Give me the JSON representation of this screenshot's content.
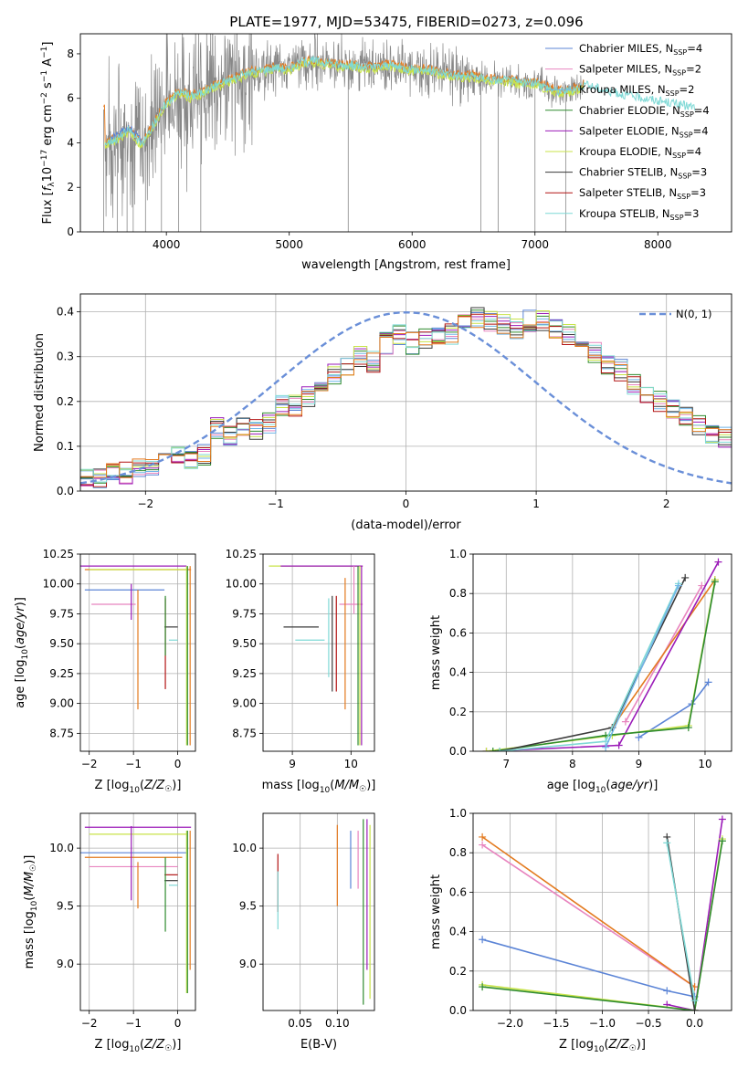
{
  "figure": {
    "title": "PLATE=1977, MJD=53475, FIBERID=0273, z=0.096"
  },
  "colors": {
    "chabrier_miles": "#5b84d6",
    "salpeter_miles": "#e885bf",
    "kroupa_miles": "#6fb5e8",
    "chabrier_elodie": "#2e8b2e",
    "salpeter_elodie": "#9b1bb8",
    "kroupa_elodie": "#c8e34a",
    "chabrier_stelib": "#3a3a3a",
    "salpeter_stelib": "#b21414",
    "kroupa_stelib": "#7fd9d6",
    "orange": "#e37a1f",
    "data_grey": "#888888",
    "normal_curve": "#6a8fd8"
  },
  "legend": {
    "items": [
      {
        "name": "Chabrier MILES",
        "nssp": "4",
        "color": "#5b84d6"
      },
      {
        "name": "Salpeter MILES",
        "nssp": "2",
        "color": "#e885bf"
      },
      {
        "name": "Kroupa MILES",
        "nssp": "2",
        "color": "#6fb5e8"
      },
      {
        "name": "Chabrier ELODIE",
        "nssp": "4",
        "color": "#2e8b2e"
      },
      {
        "name": "Salpeter ELODIE",
        "nssp": "4",
        "color": "#9b1bb8"
      },
      {
        "name": "Kroupa ELODIE",
        "nssp": "4",
        "color": "#c8e34a"
      },
      {
        "name": "Chabrier STELIB",
        "nssp": "3",
        "color": "#3a3a3a"
      },
      {
        "name": "Salpeter STELIB",
        "nssp": "3",
        "color": "#b21414"
      },
      {
        "name": "Kroupa STELIB",
        "nssp": "3",
        "color": "#7fd9d6"
      }
    ],
    "normal_label": "N(0, 1)"
  },
  "chart_data": [
    {
      "id": "spectrum",
      "type": "line",
      "xlabel": "wavelength [Angstrom, rest frame]",
      "ylabel": "Flux [f_λ 10^-17 erg cm^-2 s^-1 A^-1]",
      "xlim": [
        3300,
        8600
      ],
      "ylim": [
        0,
        8.9
      ],
      "xticks": [
        4000,
        5000,
        6000,
        7000,
        8000
      ],
      "yticks": [
        0,
        2,
        4,
        6,
        8
      ],
      "grid": false,
      "legend_position": "top-right",
      "model_continuum": {
        "x": [
          3500,
          3600,
          3700,
          3800,
          3900,
          4000,
          4100,
          4200,
          4300,
          4400,
          4500,
          4600,
          4700,
          4800,
          4900,
          5000,
          5100,
          5200,
          5300,
          5400,
          5500,
          5600,
          5700,
          5800,
          5900,
          6000,
          6100,
          6200,
          6300,
          6400,
          6500,
          6600,
          6700,
          6800,
          6900,
          7000,
          7100,
          7200,
          7300,
          7400,
          7500,
          7600,
          7700,
          7800,
          7900,
          8000,
          8100,
          8200,
          8300,
          8400
        ],
        "y": [
          4.0,
          4.2,
          4.6,
          3.9,
          4.9,
          5.8,
          6.3,
          6.1,
          6.3,
          6.6,
          6.8,
          7.0,
          7.2,
          7.3,
          7.4,
          7.3,
          7.6,
          7.7,
          7.6,
          7.5,
          7.5,
          7.4,
          7.4,
          7.5,
          7.4,
          7.3,
          7.3,
          7.2,
          7.1,
          7.0,
          7.0,
          6.9,
          6.8,
          6.8,
          6.7,
          6.7,
          6.5,
          6.3,
          6.4,
          6.6,
          6.5,
          6.3,
          6.2,
          6.1,
          6.0,
          5.9,
          5.8,
          5.7,
          5.6,
          5.5
        ]
      }
    },
    {
      "id": "residuals",
      "type": "bar",
      "xlabel": "(data-model)/error",
      "ylabel": "Normed distribution",
      "xlim": [
        -2.5,
        2.5
      ],
      "ylim": [
        0,
        0.44
      ],
      "xticks": [
        -2,
        -1,
        0,
        1,
        2
      ],
      "yticks": [
        0.0,
        0.1,
        0.2,
        0.3,
        0.4
      ],
      "grid": true,
      "legend_position": "top-right",
      "bin_width": 0.1,
      "hist": [
        0.03,
        0.03,
        0.04,
        0.04,
        0.05,
        0.06,
        0.07,
        0.08,
        0.07,
        0.08,
        0.14,
        0.12,
        0.14,
        0.14,
        0.15,
        0.19,
        0.19,
        0.21,
        0.23,
        0.26,
        0.28,
        0.3,
        0.29,
        0.33,
        0.35,
        0.33,
        0.34,
        0.34,
        0.35,
        0.37,
        0.39,
        0.38,
        0.37,
        0.36,
        0.38,
        0.38,
        0.36,
        0.35,
        0.34,
        0.31,
        0.28,
        0.27,
        0.24,
        0.22,
        0.2,
        0.18,
        0.17,
        0.15,
        0.13,
        0.12,
        0.1,
        0.09,
        0.08,
        0.07,
        0.06,
        0.05,
        0.04,
        0.03,
        0.03,
        0.02
      ]
    },
    {
      "id": "age_vs_Z",
      "type": "scatter",
      "xlabel": "Z [log10(Z/Z☉)]",
      "ylabel": "age [log10(age/yr)]",
      "xlim": [
        -2.2,
        0.4
      ],
      "ylim": [
        8.6,
        10.25
      ],
      "xticks": [
        -2,
        -1,
        0
      ],
      "yticks": [
        8.75,
        9.0,
        9.25,
        9.5,
        9.75,
        10.0,
        10.25
      ],
      "grid": true
    },
    {
      "id": "age_vs_mass",
      "type": "scatter",
      "xlabel": "mass [log10(M/M☉)]",
      "xlim": [
        8.5,
        10.4
      ],
      "ylim": [
        8.6,
        10.25
      ],
      "xticks": [
        9,
        10
      ],
      "yticks": [
        8.75,
        9.0,
        9.25,
        9.5,
        9.75,
        10.0,
        10.25
      ],
      "grid": true
    },
    {
      "id": "mass_weight_vs_age",
      "type": "line",
      "xlabel": "age [log10(age/yr)]",
      "ylabel": "mass weight",
      "xlim": [
        6.5,
        10.4
      ],
      "ylim": [
        0,
        1.0
      ],
      "xticks": [
        7,
        8,
        9,
        10
      ],
      "yticks": [
        0.0,
        0.2,
        0.4,
        0.6,
        0.8,
        1.0
      ],
      "grid": true
    },
    {
      "id": "mass_vs_Z",
      "type": "scatter",
      "xlabel": "Z [log10(Z/Z☉)]",
      "ylabel": "mass [log10(M/M☉)]",
      "xlim": [
        -2.2,
        0.4
      ],
      "ylim": [
        8.6,
        10.3
      ],
      "xticks": [
        -2,
        -1,
        0
      ],
      "yticks": [
        9.0,
        9.5,
        10.0
      ],
      "grid": true
    },
    {
      "id": "mass_vs_ebv",
      "type": "scatter",
      "xlabel": "E(B-V)",
      "xlim": [
        0.0,
        0.15
      ],
      "ylim": [
        8.6,
        10.3
      ],
      "xticks": [
        0.05,
        0.1
      ],
      "xticklabels": [
        "0.05",
        "0.10"
      ],
      "yticks": [
        9.0,
        9.5,
        10.0
      ],
      "grid": true
    },
    {
      "id": "mass_weight_vs_Z",
      "type": "line",
      "xlabel": "Z [log10(Z/Z☉)]",
      "ylabel": "mass weight",
      "xlim": [
        -2.4,
        0.4
      ],
      "ylim": [
        0,
        1.0
      ],
      "xticks": [
        -2.0,
        -1.5,
        -1.0,
        -0.5,
        0.0
      ],
      "xticklabels": [
        "−2.0",
        "−1.5",
        "−1.0",
        "−0.5",
        "0.0"
      ],
      "yticks": [
        0.0,
        0.2,
        0.4,
        0.6,
        0.8,
        1.0
      ],
      "grid": true
    }
  ],
  "series_points": {
    "age_vs_Z": [
      {
        "c": "#5b84d6",
        "x": -1.2,
        "y": 9.95,
        "ex": 0.9,
        "ey": 0
      },
      {
        "c": "#e885bf",
        "x": -1.45,
        "y": 9.83,
        "ex": 0.5,
        "ey": 0
      },
      {
        "c": "#9b1bb8",
        "x": -1.0,
        "y": 10.15,
        "ex": 1.2,
        "ey": 0
      },
      {
        "c": "#e37a1f",
        "x": -0.9,
        "y": 10.12,
        "ex": 1.2,
        "ey": 0
      },
      {
        "c": "#c8e34a",
        "x": -0.9,
        "y": 10.12,
        "ex": 1.1,
        "ey": 0
      },
      {
        "c": "#3a3a3a",
        "x": -0.15,
        "y": 9.64,
        "ex": 0.15,
        "ey": 0
      },
      {
        "c": "#7fd9d6",
        "x": -0.1,
        "y": 9.53,
        "ex": 0.1,
        "ey": 0
      },
      {
        "c": "#9b1bb8",
        "x": -1.05,
        "y": 9.85,
        "ex": 0,
        "ey": 0.15
      },
      {
        "c": "#e37a1f",
        "x": -0.9,
        "y": 9.45,
        "ex": 0,
        "ey": 0.5
      },
      {
        "c": "#b21414",
        "x": -0.28,
        "y": 9.5,
        "ex": 0,
        "ey": 0.38
      },
      {
        "c": "#2e8b2e",
        "x": -0.28,
        "y": 9.65,
        "ex": 0,
        "ey": 0.25
      },
      {
        "c": "#c8e34a",
        "x": 0.2,
        "y": 9.4,
        "ex": 0,
        "ey": 0.75
      },
      {
        "c": "#e37a1f",
        "x": 0.28,
        "y": 9.4,
        "ex": 0,
        "ey": 0.75
      },
      {
        "c": "#2e8b2e",
        "x": 0.22,
        "y": 9.4,
        "ex": 0,
        "ey": 0.75
      }
    ],
    "age_vs_mass": [
      {
        "c": "#c8e34a",
        "x": 9.4,
        "y": 10.15,
        "ex": 0.8,
        "ey": 0
      },
      {
        "c": "#9b1bb8",
        "x": 9.5,
        "y": 10.15,
        "ex": 0.7,
        "ey": 0
      },
      {
        "c": "#3a3a3a",
        "x": 9.15,
        "y": 9.64,
        "ex": 0.3,
        "ey": 0
      },
      {
        "c": "#7fd9d6",
        "x": 9.3,
        "y": 9.53,
        "ex": 0.25,
        "ey": 0
      },
      {
        "c": "#e885bf",
        "x": 10.0,
        "y": 9.83,
        "ex": 0.2,
        "ey": 0
      },
      {
        "c": "#e37a1f",
        "x": 9.9,
        "y": 9.5,
        "ex": 0,
        "ey": 0.55
      },
      {
        "c": "#b21414",
        "x": 9.75,
        "y": 9.5,
        "ex": 0,
        "ey": 0.4
      },
      {
        "c": "#3a3a3a",
        "x": 9.68,
        "y": 9.5,
        "ex": 0,
        "ey": 0.4
      },
      {
        "c": "#7fd9d6",
        "x": 9.62,
        "y": 9.55,
        "ex": 0,
        "ey": 0.33
      },
      {
        "c": "#c8e34a",
        "x": 10.15,
        "y": 9.4,
        "ex": 0,
        "ey": 0.75
      },
      {
        "c": "#2e8b2e",
        "x": 10.12,
        "y": 9.4,
        "ex": 0,
        "ey": 0.75
      },
      {
        "c": "#9b1bb8",
        "x": 10.18,
        "y": 9.4,
        "ex": 0,
        "ey": 0.75
      },
      {
        "c": "#e885bf",
        "x": 10.05,
        "y": 9.95,
        "ex": 0,
        "ey": 0.2
      }
    ],
    "mass_vs_Z": [
      {
        "c": "#5b84d6",
        "x": -1.0,
        "y": 9.96,
        "ex": 1.2,
        "ey": 0
      },
      {
        "c": "#e37a1f",
        "x": -1.0,
        "y": 9.92,
        "ex": 1.1,
        "ey": 0
      },
      {
        "c": "#e885bf",
        "x": -1.0,
        "y": 9.84,
        "ex": 1.0,
        "ey": 0
      },
      {
        "c": "#9b1bb8",
        "x": -0.9,
        "y": 10.18,
        "ex": 1.2,
        "ey": 0
      },
      {
        "c": "#c8e34a",
        "x": -0.9,
        "y": 10.12,
        "ex": 1.1,
        "ey": 0
      },
      {
        "c": "#3a3a3a",
        "x": -0.15,
        "y": 9.72,
        "ex": 0.15,
        "ey": 0
      },
      {
        "c": "#b21414",
        "x": -0.15,
        "y": 9.77,
        "ex": 0.15,
        "ey": 0
      },
      {
        "c": "#7fd9d6",
        "x": -0.1,
        "y": 9.68,
        "ex": 0.1,
        "ey": 0
      },
      {
        "c": "#9b1bb8",
        "x": -1.05,
        "y": 9.87,
        "ex": 0,
        "ey": 0.32
      },
      {
        "c": "#e37a1f",
        "x": -0.9,
        "y": 9.68,
        "ex": 0,
        "ey": 0.2
      },
      {
        "c": "#2e8b2e",
        "x": -0.28,
        "y": 9.6,
        "ex": 0,
        "ey": 0.32
      },
      {
        "c": "#c8e34a",
        "x": 0.2,
        "y": 9.45,
        "ex": 0,
        "ey": 0.7
      },
      {
        "c": "#2e8b2e",
        "x": 0.22,
        "y": 9.45,
        "ex": 0,
        "ey": 0.7
      },
      {
        "c": "#e37a1f",
        "x": 0.28,
        "y": 9.55,
        "ex": 0,
        "ey": 0.6
      }
    ],
    "mass_vs_ebv": [
      {
        "c": "#b21414",
        "x": 0.02,
        "y": 9.7,
        "ex": 0,
        "ey": 0.25
      },
      {
        "c": "#7fd9d6",
        "x": 0.02,
        "y": 9.55,
        "ex": 0,
        "ey": 0.25
      },
      {
        "c": "#e37a1f",
        "x": 0.1,
        "y": 9.85,
        "ex": 0,
        "ey": 0.35
      },
      {
        "c": "#5b84d6",
        "x": 0.118,
        "y": 9.9,
        "ex": 0,
        "ey": 0.25
      },
      {
        "c": "#2e8b2e",
        "x": 0.135,
        "y": 9.45,
        "ex": 0,
        "ey": 0.8
      },
      {
        "c": "#9b1bb8",
        "x": 0.14,
        "y": 9.6,
        "ex": 0,
        "ey": 0.65
      },
      {
        "c": "#c8e34a",
        "x": 0.144,
        "y": 9.45,
        "ex": 0,
        "ey": 0.75
      },
      {
        "c": "#e885bf",
        "x": 0.128,
        "y": 9.9,
        "ex": 0,
        "ey": 0.25
      }
    ]
  },
  "weight_lines": {
    "age": [
      {
        "c": "#5b84d6",
        "pts": [
          [
            9.0,
            0.07
          ],
          [
            9.8,
            0.24
          ],
          [
            10.05,
            0.35
          ]
        ]
      },
      {
        "c": "#e885bf",
        "pts": [
          [
            8.8,
            0.15
          ],
          [
            9.95,
            0.84
          ]
        ]
      },
      {
        "c": "#e37a1f",
        "pts": [
          [
            8.6,
            0.12
          ],
          [
            10.15,
            0.87
          ]
        ]
      },
      {
        "c": "#9b1bb8",
        "pts": [
          [
            6.7,
            0.0
          ],
          [
            8.7,
            0.03
          ],
          [
            10.2,
            0.96
          ]
        ]
      },
      {
        "c": "#c8e34a",
        "pts": [
          [
            6.7,
            0.0
          ],
          [
            8.6,
            0.08
          ],
          [
            9.75,
            0.13
          ],
          [
            10.15,
            0.87
          ]
        ]
      },
      {
        "c": "#2e8b2e",
        "pts": [
          [
            6.8,
            0.0
          ],
          [
            8.5,
            0.08
          ],
          [
            9.75,
            0.12
          ],
          [
            10.15,
            0.86
          ]
        ]
      },
      {
        "c": "#3a3a3a",
        "pts": [
          [
            6.9,
            0.0
          ],
          [
            8.6,
            0.12
          ],
          [
            9.7,
            0.88
          ]
        ]
      },
      {
        "c": "#7fd9d6",
        "pts": [
          [
            6.9,
            0.0
          ],
          [
            8.5,
            0.05
          ],
          [
            9.6,
            0.85
          ]
        ]
      },
      {
        "c": "#6fb5e8",
        "pts": [
          [
            8.5,
            0.02
          ],
          [
            9.6,
            0.84
          ]
        ]
      }
    ],
    "Z": [
      {
        "c": "#5b84d6",
        "pts": [
          [
            -2.3,
            0.36
          ],
          [
            -0.3,
            0.1
          ],
          [
            0.0,
            0.07
          ]
        ]
      },
      {
        "c": "#e885bf",
        "pts": [
          [
            -2.3,
            0.84
          ],
          [
            0.0,
            0.12
          ]
        ]
      },
      {
        "c": "#e37a1f",
        "pts": [
          [
            -2.3,
            0.88
          ],
          [
            0.0,
            0.12
          ]
        ]
      },
      {
        "c": "#9b1bb8",
        "pts": [
          [
            -0.3,
            0.03
          ],
          [
            0.0,
            0.0
          ],
          [
            0.3,
            0.97
          ]
        ]
      },
      {
        "c": "#c8e34a",
        "pts": [
          [
            -2.3,
            0.13
          ],
          [
            0.0,
            0.0
          ],
          [
            0.3,
            0.87
          ]
        ]
      },
      {
        "c": "#2e8b2e",
        "pts": [
          [
            -2.3,
            0.12
          ],
          [
            0.0,
            0.0
          ],
          [
            0.3,
            0.86
          ]
        ]
      },
      {
        "c": "#3a3a3a",
        "pts": [
          [
            -0.3,
            0.88
          ],
          [
            0.0,
            0.0
          ]
        ]
      },
      {
        "c": "#7fd9d6",
        "pts": [
          [
            -0.3,
            0.85
          ],
          [
            0.0,
            0.05
          ]
        ]
      }
    ]
  }
}
